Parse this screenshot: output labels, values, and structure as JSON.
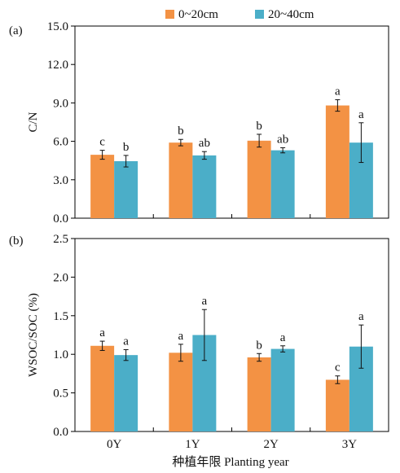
{
  "legend": {
    "placement": "top-center",
    "items": [
      {
        "label": "0~20cm",
        "color": "#F39244"
      },
      {
        "label": "20~40cm",
        "color": "#4BAEC8"
      }
    ]
  },
  "xlabel": "种植年限 Planting year",
  "chart_data": [
    {
      "type": "bar",
      "panel_label": "(a)",
      "ylabel": "C/N",
      "categories": [
        "0Y",
        "1Y",
        "2Y",
        "3Y"
      ],
      "ylim": [
        0,
        15
      ],
      "yticks": [
        0,
        3,
        6,
        9,
        12,
        15
      ],
      "ytick_labels": [
        "0.0",
        "3.0",
        "6.0",
        "9.0",
        "12.0",
        "15.0"
      ],
      "grid": false,
      "series": [
        {
          "name": "0~20cm",
          "color": "#F39244",
          "values": [
            4.95,
            5.9,
            6.05,
            8.8
          ],
          "errors": [
            0.35,
            0.25,
            0.5,
            0.45
          ],
          "letters": [
            "c",
            "b",
            "b",
            "a"
          ]
        },
        {
          "name": "20~40cm",
          "color": "#4BAEC8",
          "values": [
            4.45,
            4.9,
            5.3,
            5.9
          ],
          "errors": [
            0.45,
            0.3,
            0.2,
            1.55
          ],
          "letters": [
            "b",
            "ab",
            "ab",
            "a"
          ]
        }
      ]
    },
    {
      "type": "bar",
      "panel_label": "(b)",
      "ylabel": "WSOC/SOC (%)",
      "xlabel": "种植年限 Planting year",
      "categories": [
        "0Y",
        "1Y",
        "2Y",
        "3Y"
      ],
      "ylim": [
        0,
        2.5
      ],
      "yticks": [
        0,
        0.5,
        1,
        1.5,
        2,
        2.5
      ],
      "ytick_labels": [
        "0.0",
        "0.5",
        "1.0",
        "1.5",
        "2.0",
        "2.5"
      ],
      "grid": false,
      "series": [
        {
          "name": "0~20cm",
          "color": "#F39244",
          "values": [
            1.11,
            1.02,
            0.96,
            0.67
          ],
          "errors": [
            0.06,
            0.11,
            0.05,
            0.05
          ],
          "letters": [
            "a",
            "a",
            "b",
            "c"
          ]
        },
        {
          "name": "20~40cm",
          "color": "#4BAEC8",
          "values": [
            0.99,
            1.25,
            1.07,
            1.1
          ],
          "errors": [
            0.07,
            0.33,
            0.04,
            0.28
          ],
          "letters": [
            "a",
            "a",
            "a",
            "a"
          ]
        }
      ]
    }
  ]
}
